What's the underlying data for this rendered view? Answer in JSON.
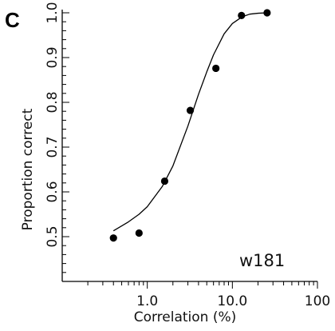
{
  "panel_label": "C",
  "chart_data": {
    "type": "scatter",
    "xlabel": "Correlation (%)",
    "ylabel": "Proportion correct",
    "xscale": "log",
    "xlim": [
      0.1,
      100
    ],
    "ylim": [
      0.4,
      1.0
    ],
    "x_ticks": [
      {
        "value": 1,
        "label": "1.0"
      },
      {
        "value": 10,
        "label": "10.0"
      },
      {
        "value": 100,
        "label": "100"
      }
    ],
    "y_ticks": [
      {
        "value": 0.5,
        "label": "0.5"
      },
      {
        "value": 0.6,
        "label": "0.6"
      },
      {
        "value": 0.7,
        "label": "0.7"
      },
      {
        "value": 0.8,
        "label": "0.8"
      },
      {
        "value": 0.9,
        "label": "0.9"
      },
      {
        "value": 1.0,
        "label": "1.0"
      }
    ],
    "annotation": "w181",
    "grid": false,
    "series": [
      {
        "points": [
          {
            "x": 0.4,
            "y": 0.497
          },
          {
            "x": 0.8,
            "y": 0.508
          },
          {
            "x": 1.6,
            "y": 0.624
          },
          {
            "x": 3.2,
            "y": 0.782
          },
          {
            "x": 6.4,
            "y": 0.876
          },
          {
            "x": 12.8,
            "y": 0.994
          },
          {
            "x": 25.6,
            "y": 1.0
          }
        ]
      }
    ],
    "fit_curve": {
      "style": "solid line",
      "points": [
        {
          "x": 0.4,
          "y": 0.513
        },
        {
          "x": 0.6,
          "y": 0.533
        },
        {
          "x": 0.8,
          "y": 0.55
        },
        {
          "x": 1.0,
          "y": 0.567
        },
        {
          "x": 1.5,
          "y": 0.612
        },
        {
          "x": 2.0,
          "y": 0.658
        },
        {
          "x": 3.0,
          "y": 0.747
        },
        {
          "x": 4.0,
          "y": 0.818
        },
        {
          "x": 5.0,
          "y": 0.868
        },
        {
          "x": 6.0,
          "y": 0.906
        },
        {
          "x": 8.0,
          "y": 0.953
        },
        {
          "x": 10.0,
          "y": 0.976
        },
        {
          "x": 13.0,
          "y": 0.991
        },
        {
          "x": 16.0,
          "y": 0.997
        },
        {
          "x": 20.0,
          "y": 0.999
        },
        {
          "x": 25.6,
          "y": 1.0
        }
      ]
    }
  }
}
